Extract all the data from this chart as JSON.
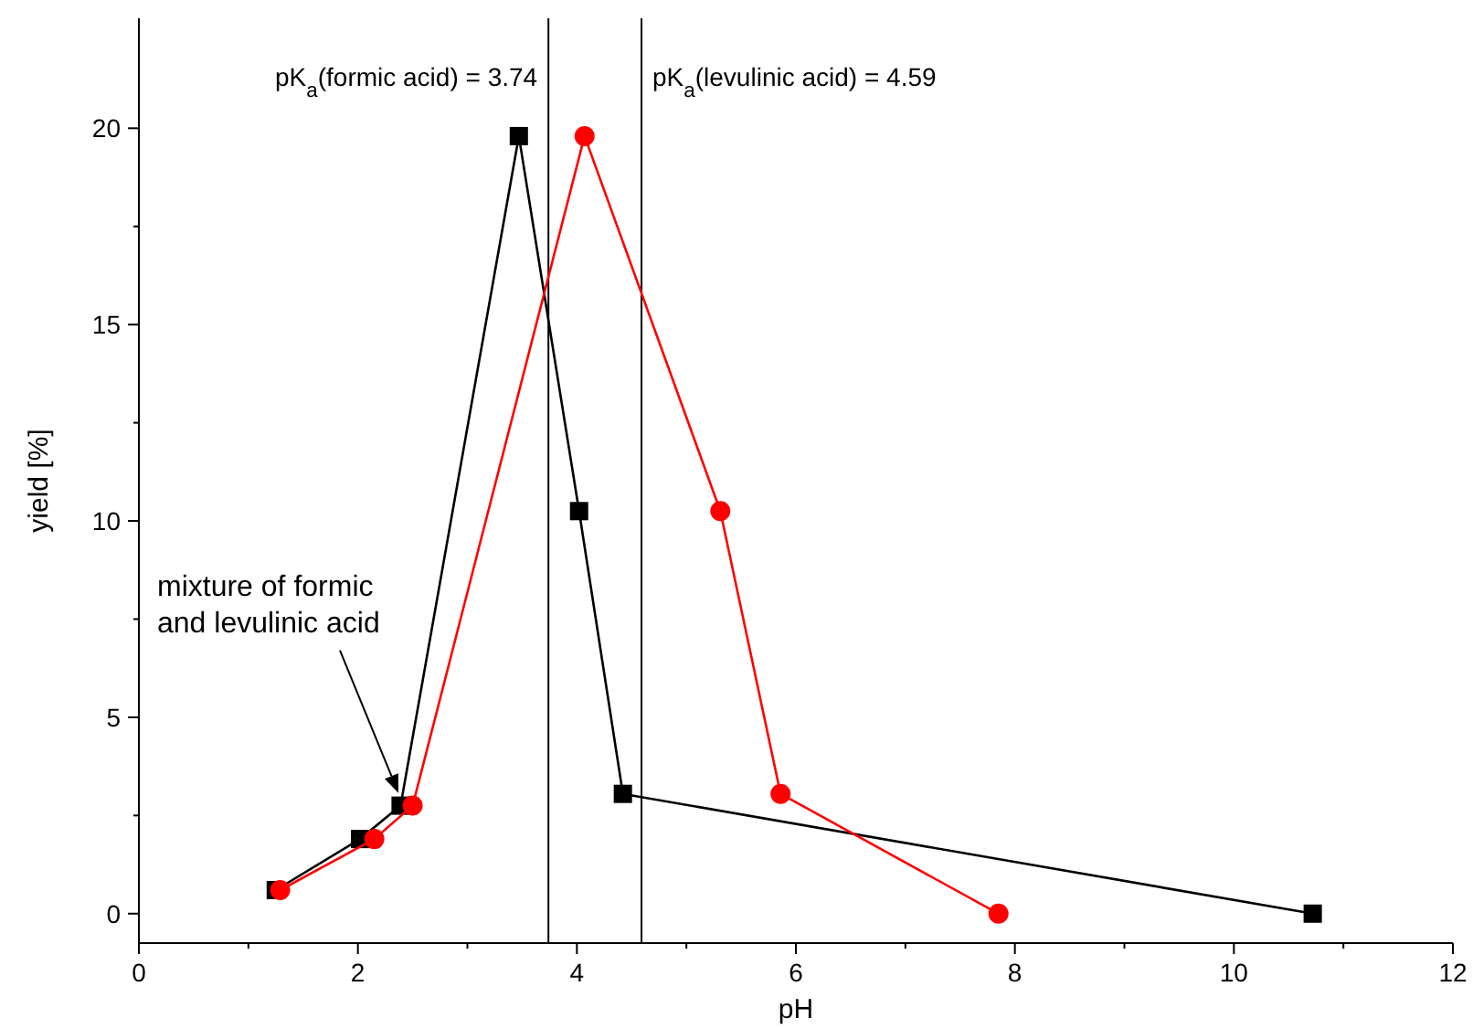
{
  "chart_data": {
    "type": "line",
    "xlabel": "pH",
    "ylabel": "yield [%]",
    "xlim": [
      0,
      12
    ],
    "xticks": [
      0,
      2,
      4,
      6,
      8,
      10,
      12
    ],
    "ylim": [
      -0.75,
      22.8
    ],
    "yticks": [
      0,
      5,
      10,
      15,
      20
    ],
    "grid": false,
    "series": [
      {
        "color": "#000000",
        "marker": "square",
        "x": [
          1.25,
          2.02,
          2.39,
          3.47,
          4.02,
          4.42,
          10.72
        ],
        "values": [
          0.6,
          1.9,
          2.75,
          19.8,
          10.25,
          3.05,
          0
        ]
      },
      {
        "color": "#ff0000",
        "marker": "circle",
        "x": [
          1.29,
          2.15,
          2.5,
          4.07,
          5.31,
          5.86,
          7.85
        ],
        "values": [
          0.6,
          1.9,
          2.75,
          19.8,
          10.25,
          3.05,
          0
        ]
      }
    ],
    "ref_lines": [
      {
        "axis": "x",
        "value": 3.74,
        "label": "pK$_{a}$(formic acid) = 3.74",
        "color": "#000000"
      },
      {
        "axis": "x",
        "value": 4.59,
        "label": "pK$_{a}$(levulinic acid) = 4.59",
        "color": "#000000"
      }
    ],
    "annotations": [
      "mixture of formic\nand levulinic acid"
    ]
  }
}
